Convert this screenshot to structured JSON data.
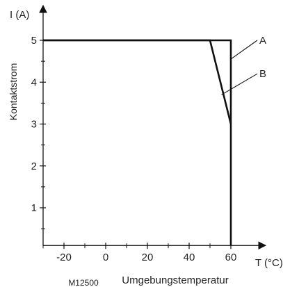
{
  "chart_data": {
    "type": "line",
    "y_label_top": "I (A)",
    "y_label_side": "Kontaktstrom",
    "x_label_right": "T (°C)",
    "x_label_bottom": "Umgebungstemperatur",
    "figure_code": "M12500",
    "xlim": [
      -30,
      70
    ],
    "ylim": [
      0.1,
      5.5
    ],
    "x_ticks": [
      -20,
      0,
      20,
      40,
      60
    ],
    "x_minor_ticks": [
      -30,
      -10,
      10,
      30,
      50
    ],
    "y_ticks": [
      1,
      2,
      3,
      4,
      5
    ],
    "y_minor_ticks": [
      0.5,
      1.5,
      2.5,
      3.5,
      4.5
    ],
    "grid": false,
    "series": [
      {
        "name": "A",
        "x": [
          -30,
          60,
          60
        ],
        "y": [
          5,
          5,
          0.1
        ]
      },
      {
        "name": "B",
        "x": [
          -30,
          50,
          60
        ],
        "y": [
          5,
          5,
          3
        ]
      }
    ]
  }
}
